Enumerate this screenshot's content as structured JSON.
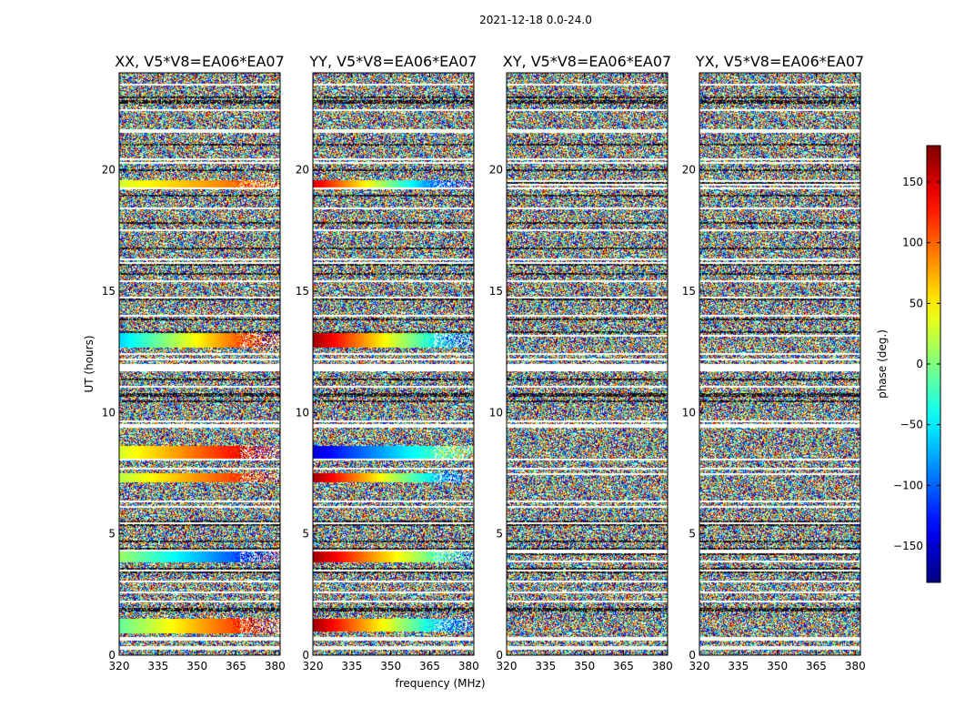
{
  "chart_data": {
    "type": "heatmap",
    "suptitle": "2021-12-18 0.0-24.0",
    "xlabel": "frequency (MHz)",
    "ylabel": "UT (hours)",
    "xlim": [
      320,
      382
    ],
    "ylim": [
      0,
      24
    ],
    "xticks": [
      "320",
      "335",
      "350",
      "365",
      "380"
    ],
    "xtick_values": [
      320,
      335,
      350,
      365,
      380
    ],
    "yticks": [
      "0",
      "5",
      "10",
      "15",
      "20"
    ],
    "ytick_values": [
      0,
      5,
      10,
      15,
      20
    ],
    "colorbar": {
      "label": "phase (deg.)",
      "range": [
        -180,
        180
      ],
      "ticks": [
        "−150",
        "−100",
        "−50",
        "0",
        "50",
        "100",
        "150"
      ],
      "tick_values": [
        -150,
        -100,
        -50,
        0,
        50,
        100,
        150
      ],
      "colormap": "jet"
    },
    "panels": [
      {
        "title": "XX, V5*V8=EA06*EA07"
      },
      {
        "title": "YY, V5*V8=EA06*EA07"
      },
      {
        "title": "XY, V5*V8=EA06*EA07"
      },
      {
        "title": "YX, V5*V8=EA06*EA07"
      }
    ],
    "coherent_bands": [
      {
        "panel": 0,
        "t0": 0.9,
        "t1": 1.5,
        "phase_start": -10,
        "phase_end": 160
      },
      {
        "panel": 0,
        "t0": 3.8,
        "t1": 4.3,
        "phase_start": 10,
        "phase_end": -150
      },
      {
        "panel": 0,
        "t0": 7.1,
        "t1": 7.5,
        "phase_start": 20,
        "phase_end": 150
      },
      {
        "panel": 0,
        "t0": 8.1,
        "t1": 8.6,
        "phase_start": 30,
        "phase_end": 170
      },
      {
        "panel": 0,
        "t0": 12.7,
        "t1": 13.3,
        "phase_start": -60,
        "phase_end": 160
      },
      {
        "panel": 0,
        "t0": 19.3,
        "t1": 19.6,
        "phase_start": 30,
        "phase_end": 120
      },
      {
        "panel": 1,
        "t0": 1.0,
        "t1": 1.5,
        "phase_start": 170,
        "phase_end": -120
      },
      {
        "panel": 1,
        "t0": 3.8,
        "t1": 4.3,
        "phase_start": 170,
        "phase_end": -70
      },
      {
        "panel": 1,
        "t0": 7.1,
        "t1": 7.5,
        "phase_start": 170,
        "phase_end": -130
      },
      {
        "panel": 1,
        "t0": 8.1,
        "t1": 8.6,
        "phase_start": -150,
        "phase_end": 20
      },
      {
        "panel": 1,
        "t0": 12.7,
        "t1": 13.3,
        "phase_start": 170,
        "phase_end": -110
      },
      {
        "panel": 1,
        "t0": 19.3,
        "t1": 19.6,
        "phase_start": 150,
        "phase_end": -170
      }
    ]
  }
}
